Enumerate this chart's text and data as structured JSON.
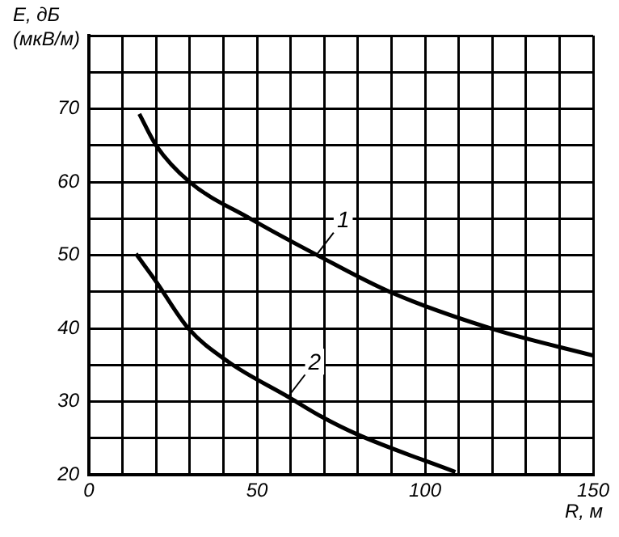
{
  "chart_data": {
    "type": "line",
    "ylabel": "E, дБ (мкВ/м)",
    "xlabel": "R, м",
    "xlim": [
      0,
      150
    ],
    "ylim": [
      20,
      80
    ],
    "xticks": [
      0,
      {
        "value": 10,
        "label": null
      },
      {
        "value": 20,
        "label": null
      },
      {
        "value": 30,
        "label": null
      },
      {
        "value": 40,
        "label": null
      },
      50,
      {
        "value": 60,
        "label": null
      },
      {
        "value": 70,
        "label": null
      },
      {
        "value": 80,
        "label": null
      },
      {
        "value": 90,
        "label": null
      },
      100,
      {
        "value": 110,
        "label": null
      },
      {
        "value": 120,
        "label": null
      },
      {
        "value": 130,
        "label": null
      },
      {
        "value": 140,
        "label": null
      },
      150
    ],
    "yticks": [
      20,
      {
        "value": 25,
        "label": null
      },
      30,
      {
        "value": 35,
        "label": null
      },
      40,
      {
        "value": 45,
        "label": null
      },
      50,
      {
        "value": 55,
        "label": null
      },
      60,
      {
        "value": 65,
        "label": null
      },
      70,
      {
        "value": 75,
        "label": null
      },
      {
        "value": 80,
        "label": null
      }
    ],
    "grid": true,
    "legend": false,
    "marker": "none",
    "series": [
      {
        "name": "1",
        "color": "#000000",
        "x": [
          15,
          20,
          30,
          48,
          68,
          90,
          121,
          150
        ],
        "values": [
          69.3,
          65,
          60,
          55,
          50,
          44.9,
          39.8,
          36.3
        ]
      },
      {
        "name": "2",
        "color": "#000000",
        "x": [
          14,
          20,
          29.6,
          41.6,
          59.5,
          69,
          80,
          109
        ],
        "values": [
          50.2,
          46.4,
          40,
          35.4,
          30.6,
          28,
          25.5,
          20.4
        ]
      }
    ]
  }
}
